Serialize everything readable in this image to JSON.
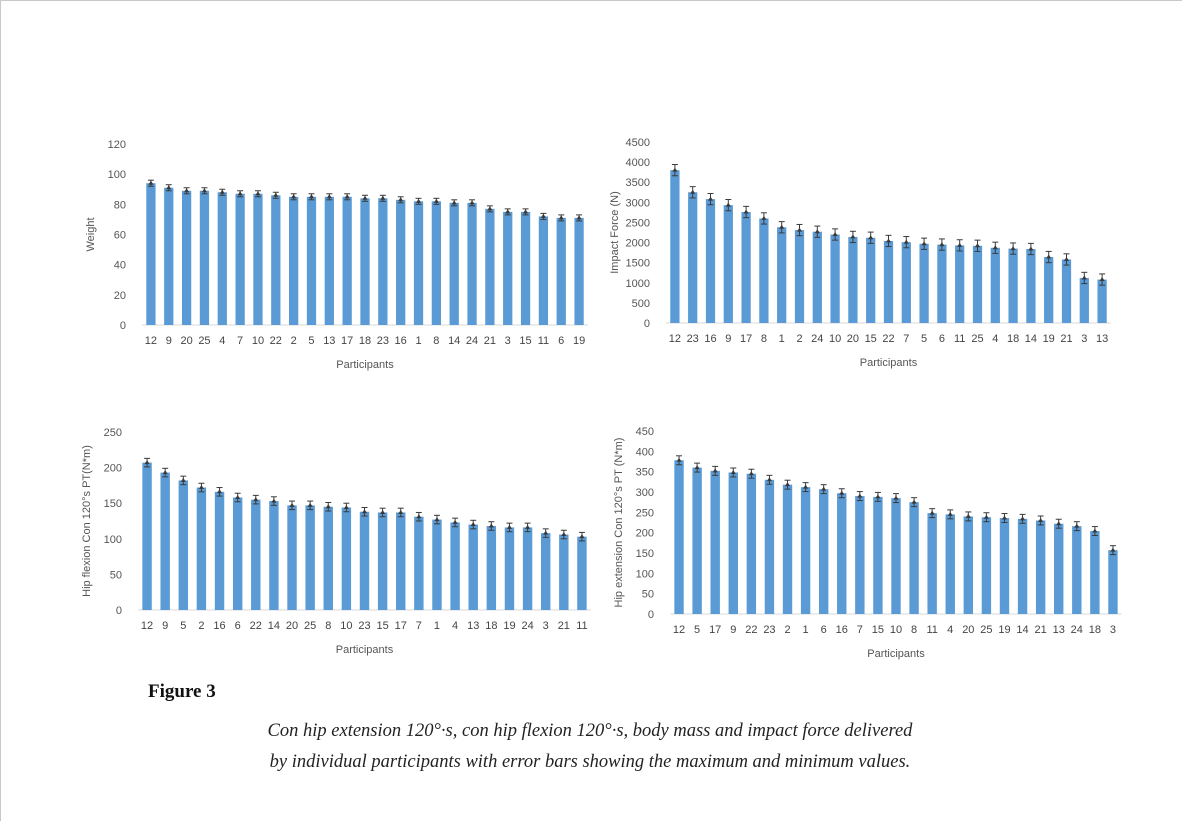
{
  "figure": {
    "label": "Figure 3",
    "caption_line1": "Con hip extension 120°·s, con hip flexion 120°·s, body mass and impact force delivered",
    "caption_line2": "by individual participants with error bars showing the maximum and minimum values."
  },
  "colors": {
    "bar": "#5b9bd5",
    "error": "#3a3a3a",
    "axis": "#d9d9d9"
  },
  "chart_data": [
    {
      "type": "bar",
      "xlabel": "Participants",
      "ylabel": "Weight",
      "ylim": [
        0,
        120
      ],
      "yticks": [
        0,
        20,
        40,
        60,
        80,
        100,
        120
      ],
      "categories": [
        "12",
        "9",
        "20",
        "25",
        "4",
        "7",
        "10",
        "22",
        "2",
        "5",
        "13",
        "17",
        "18",
        "23",
        "16",
        "1",
        "8",
        "14",
        "24",
        "21",
        "3",
        "15",
        "11",
        "6",
        "19"
      ],
      "values": [
        94,
        91,
        89,
        89,
        88,
        87,
        87,
        86,
        85,
        85,
        85,
        85,
        84,
        84,
        83,
        82,
        82,
        81,
        81,
        77,
        75,
        75,
        72,
        71,
        71
      ],
      "error": 2
    },
    {
      "type": "bar",
      "xlabel": "Participants",
      "ylabel": "Impact Force (N)",
      "ylim": [
        0,
        4500
      ],
      "yticks": [
        0,
        500,
        1000,
        1500,
        2000,
        2500,
        3000,
        3500,
        4000,
        4500
      ],
      "categories": [
        "12",
        "23",
        "16",
        "9",
        "17",
        "8",
        "1",
        "2",
        "24",
        "10",
        "20",
        "15",
        "22",
        "7",
        "5",
        "6",
        "11",
        "25",
        "4",
        "18",
        "14",
        "19",
        "21",
        "3",
        "13"
      ],
      "values": [
        3800,
        3250,
        3080,
        2930,
        2760,
        2600,
        2380,
        2310,
        2270,
        2200,
        2140,
        2120,
        2040,
        2010,
        1970,
        1950,
        1930,
        1920,
        1870,
        1850,
        1840,
        1640,
        1580,
        1120,
        1080
      ],
      "error": 140
    },
    {
      "type": "bar",
      "xlabel": "Participants",
      "ylabel": "Hip flexion Con 120°s PT(N*m)",
      "ylim": [
        0,
        250
      ],
      "yticks": [
        0,
        50,
        100,
        150,
        200,
        250
      ],
      "categories": [
        "12",
        "9",
        "5",
        "2",
        "16",
        "6",
        "22",
        "14",
        "20",
        "25",
        "8",
        "10",
        "23",
        "15",
        "17",
        "7",
        "1",
        "4",
        "13",
        "18",
        "19",
        "24",
        "3",
        "21",
        "11"
      ],
      "values": [
        207,
        193,
        182,
        172,
        166,
        158,
        155,
        153,
        147,
        147,
        145,
        144,
        138,
        137,
        137,
        131,
        127,
        123,
        120,
        118,
        116,
        116,
        108,
        106,
        103
      ],
      "error": 6
    },
    {
      "type": "bar",
      "xlabel": "Participants",
      "ylabel": "Hip extension Con 120°s PT (N*m)",
      "ylim": [
        0,
        450
      ],
      "yticks": [
        0,
        50,
        100,
        150,
        200,
        250,
        300,
        350,
        400,
        450
      ],
      "categories": [
        "12",
        "5",
        "17",
        "9",
        "22",
        "23",
        "2",
        "1",
        "6",
        "16",
        "7",
        "15",
        "10",
        "8",
        "11",
        "4",
        "20",
        "25",
        "19",
        "14",
        "21",
        "13",
        "24",
        "18",
        "3"
      ],
      "values": [
        378,
        360,
        352,
        348,
        345,
        330,
        318,
        312,
        307,
        297,
        290,
        288,
        285,
        275,
        248,
        245,
        240,
        238,
        236,
        234,
        230,
        222,
        216,
        204,
        157
      ],
      "error": 11
    }
  ]
}
